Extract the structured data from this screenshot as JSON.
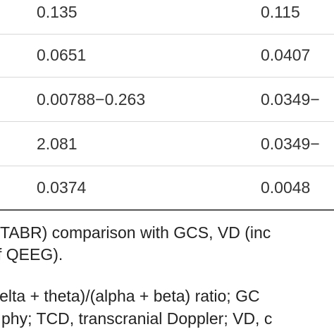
{
  "table": {
    "rows": [
      [
        "0.135",
        "0.115"
      ],
      [
        "0.0651",
        "0.0407"
      ],
      [
        "0.00788−0.263",
        "0.0349−"
      ],
      [
        "2.081",
        "0.0349−"
      ],
      [
        "0.0374",
        "0.0048"
      ]
    ]
  },
  "caption": {
    "lines": [
      "TABR) comparison with GCS, VD (inc",
      "f QEEG)."
    ]
  },
  "footnote": {
    "lines": [
      "lelta + theta)/(alpha + beta) ratio; GC",
      "phy; TCD, transcranial Doppler; VD, c"
    ]
  }
}
